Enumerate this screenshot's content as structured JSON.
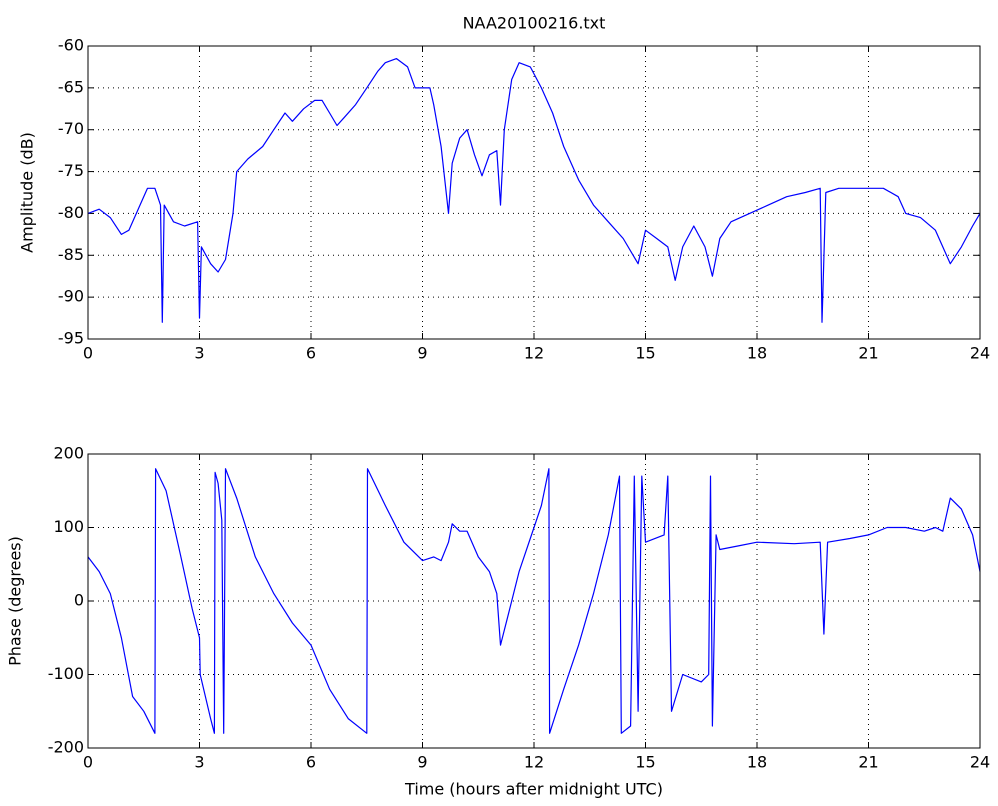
{
  "chart_data": [
    {
      "type": "line",
      "title": "NAA20100216.txt",
      "ylabel": "Amplitude (dB)",
      "color": "#0000ff",
      "grid": true,
      "xlim": [
        0,
        24
      ],
      "xticks": [
        0,
        3,
        6,
        9,
        12,
        15,
        18,
        21,
        24
      ],
      "ylim": [
        -95,
        -60
      ],
      "yticks": [
        -95,
        -90,
        -85,
        -80,
        -75,
        -70,
        -65,
        -60
      ],
      "x": [
        0,
        0.3,
        0.6,
        0.9,
        1.1,
        1.4,
        1.6,
        1.8,
        1.95,
        2.0,
        2.05,
        2.3,
        2.6,
        2.95,
        3.0,
        3.05,
        3.3,
        3.5,
        3.7,
        3.9,
        4.0,
        4.3,
        4.7,
        5.0,
        5.3,
        5.5,
        5.8,
        6.1,
        6.3,
        6.5,
        6.7,
        6.9,
        7.2,
        7.5,
        7.8,
        8.0,
        8.3,
        8.6,
        8.8,
        9.0,
        9.2,
        9.3,
        9.5,
        9.6,
        9.7,
        9.8,
        10.0,
        10.2,
        10.4,
        10.6,
        10.8,
        11.0,
        11.1,
        11.2,
        11.4,
        11.6,
        11.9,
        12.2,
        12.5,
        12.8,
        13.2,
        13.6,
        14.0,
        14.4,
        14.8,
        15.0,
        15.3,
        15.6,
        15.8,
        16.0,
        16.3,
        16.6,
        16.8,
        17.0,
        17.3,
        17.8,
        18.3,
        18.8,
        19.3,
        19.7,
        19.75,
        19.85,
        20.2,
        20.8,
        21.4,
        21.8,
        22.0,
        22.4,
        22.8,
        23.0,
        23.2,
        23.5,
        23.8,
        24.0
      ],
      "values": [
        -80,
        -79.5,
        -80.5,
        -82.5,
        -82,
        -79,
        -77,
        -77,
        -79,
        -93,
        -79,
        -81,
        -81.5,
        -81,
        -92.5,
        -84,
        -86,
        -87,
        -85.5,
        -80,
        -75,
        -73.5,
        -72,
        -70,
        -68,
        -69,
        -67.5,
        -66.5,
        -66.5,
        -68,
        -69.5,
        -68.5,
        -67,
        -65,
        -63,
        -62,
        -61.5,
        -62.5,
        -65,
        -65,
        -65,
        -67,
        -72,
        -76,
        -80,
        -74,
        -71,
        -70,
        -73,
        -75.5,
        -73,
        -72.5,
        -79,
        -70,
        -64,
        -62,
        -62.5,
        -65,
        -68,
        -72,
        -76,
        -79,
        -81,
        -83,
        -86,
        -82,
        -83,
        -84,
        -88,
        -84,
        -81.5,
        -84,
        -87.5,
        -83,
        -81,
        -80,
        -79,
        -78,
        -77.5,
        -77,
        -93,
        -77.5,
        -77,
        -77,
        -77,
        -78,
        -80,
        -80.5,
        -82,
        -84,
        -86,
        -84,
        -81.5,
        -80
      ]
    },
    {
      "type": "line",
      "xlabel": "Time (hours after midnight UTC)",
      "ylabel": "Phase (degrees)",
      "color": "#0000ff",
      "grid": true,
      "xlim": [
        0,
        24
      ],
      "xticks": [
        0,
        3,
        6,
        9,
        12,
        15,
        18,
        21,
        24
      ],
      "ylim": [
        -200,
        200
      ],
      "yticks": [
        -200,
        -100,
        0,
        100,
        200
      ],
      "x": [
        0,
        0.3,
        0.6,
        0.9,
        1.2,
        1.5,
        1.8,
        1.82,
        2.1,
        2.5,
        2.8,
        3.0,
        3.02,
        3.3,
        3.4,
        3.42,
        3.5,
        3.6,
        3.65,
        3.7,
        4.0,
        4.5,
        5.0,
        5.5,
        6.0,
        6.5,
        7.0,
        7.5,
        7.52,
        8.0,
        8.5,
        9.0,
        9.3,
        9.5,
        9.7,
        9.8,
        10.0,
        10.2,
        10.5,
        10.8,
        11.0,
        11.1,
        11.3,
        11.6,
        12.0,
        12.2,
        12.4,
        12.42,
        12.8,
        13.2,
        13.6,
        14.0,
        14.3,
        14.35,
        14.6,
        14.7,
        14.8,
        14.9,
        15.0,
        15.5,
        15.6,
        15.7,
        16.0,
        16.5,
        16.7,
        16.75,
        16.8,
        16.9,
        17.0,
        17.5,
        18.0,
        19.0,
        19.7,
        19.8,
        19.9,
        20.5,
        21.0,
        21.5,
        22.0,
        22.5,
        22.8,
        23.0,
        23.2,
        23.5,
        23.8,
        24.0
      ],
      "values": [
        60,
        40,
        10,
        -50,
        -130,
        -150,
        -180,
        180,
        150,
        60,
        -10,
        -50,
        -100,
        -160,
        -180,
        175,
        160,
        110,
        -180,
        180,
        140,
        60,
        10,
        -30,
        -60,
        -120,
        -160,
        -180,
        180,
        130,
        80,
        55,
        60,
        55,
        80,
        105,
        95,
        95,
        60,
        40,
        10,
        -60,
        -20,
        40,
        100,
        130,
        180,
        -180,
        -120,
        -60,
        10,
        90,
        170,
        -180,
        -170,
        170,
        -150,
        170,
        80,
        90,
        170,
        -150,
        -100,
        -110,
        -100,
        170,
        -170,
        90,
        70,
        75,
        80,
        78,
        80,
        -45,
        80,
        85,
        90,
        100,
        100,
        95,
        100,
        95,
        140,
        125,
        90,
        40
      ]
    }
  ]
}
